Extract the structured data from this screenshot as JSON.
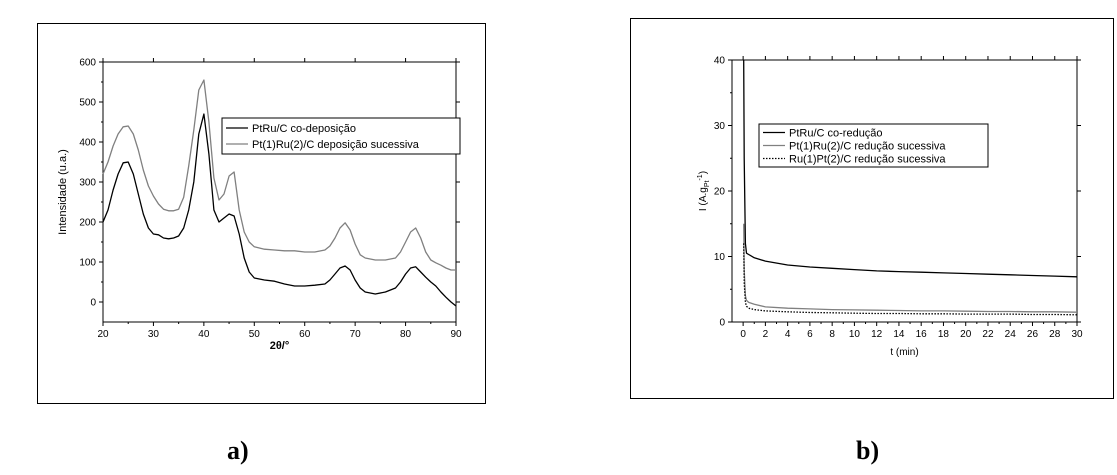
{
  "panels": [
    {
      "label": "a)"
    },
    {
      "label": "b)"
    }
  ],
  "chart_data": [
    {
      "type": "line",
      "xlabel": "2θ/°",
      "ylabel": "Intensidade (u.a.)",
      "xlim": [
        20,
        90
      ],
      "ylim": [
        -50,
        600
      ],
      "xticks": [
        20,
        30,
        40,
        50,
        60,
        70,
        80,
        90
      ],
      "yticks": [
        0,
        100,
        200,
        300,
        400,
        500,
        600
      ],
      "grid": false,
      "legend_position": "top-right",
      "series": [
        {
          "name": "PtRu/C co-deposição",
          "color": "#000000",
          "dash": "solid",
          "x": [
            20,
            21,
            22,
            23,
            24,
            25,
            26,
            27,
            28,
            29,
            30,
            31,
            32,
            33,
            34,
            35,
            36,
            37,
            38,
            39,
            40,
            41,
            42,
            43,
            44,
            45,
            46,
            47,
            48,
            49,
            50,
            52,
            54,
            56,
            58,
            60,
            62,
            64,
            65,
            66,
            67,
            68,
            69,
            70,
            71,
            72,
            74,
            76,
            78,
            79,
            80,
            81,
            82,
            83,
            84,
            85,
            86,
            87,
            88,
            89,
            90
          ],
          "values": [
            200,
            230,
            280,
            320,
            348,
            350,
            320,
            270,
            220,
            185,
            170,
            168,
            160,
            158,
            160,
            165,
            185,
            230,
            300,
            420,
            470,
            370,
            230,
            200,
            210,
            220,
            215,
            170,
            110,
            75,
            60,
            55,
            52,
            45,
            40,
            40,
            42,
            45,
            55,
            70,
            85,
            90,
            80,
            55,
            35,
            25,
            20,
            25,
            35,
            50,
            70,
            85,
            88,
            75,
            62,
            50,
            40,
            25,
            12,
            0,
            -10
          ]
        },
        {
          "name": "Pt(1)Ru(2)/C deposição sucessiva",
          "color": "#808080",
          "dash": "solid",
          "x": [
            20,
            21,
            22,
            23,
            24,
            25,
            26,
            27,
            28,
            29,
            30,
            31,
            32,
            33,
            34,
            35,
            36,
            37,
            38,
            39,
            40,
            41,
            42,
            43,
            44,
            45,
            46,
            47,
            48,
            49,
            50,
            52,
            54,
            56,
            58,
            60,
            62,
            64,
            65,
            66,
            67,
            68,
            69,
            70,
            71,
            72,
            74,
            76,
            78,
            79,
            80,
            81,
            82,
            83,
            84,
            85,
            86,
            87,
            88,
            89,
            90
          ],
          "values": [
            320,
            350,
            390,
            420,
            438,
            440,
            420,
            380,
            330,
            290,
            265,
            245,
            232,
            228,
            228,
            232,
            262,
            340,
            430,
            530,
            555,
            450,
            310,
            255,
            270,
            315,
            325,
            230,
            175,
            150,
            138,
            132,
            130,
            128,
            128,
            125,
            125,
            130,
            140,
            160,
            185,
            198,
            180,
            145,
            118,
            110,
            105,
            105,
            110,
            125,
            150,
            175,
            185,
            160,
            125,
            105,
            98,
            92,
            85,
            80,
            80
          ]
        }
      ]
    },
    {
      "type": "line",
      "xlabel": "t (min)",
      "ylabel": "I (A.g",
      "ylabel_sub": "Pt",
      "ylabel_sup": "-1",
      "ylabel_close": ")",
      "xlim": [
        -1,
        30
      ],
      "ylim": [
        0,
        40
      ],
      "xticks": [
        0,
        2,
        4,
        6,
        8,
        10,
        12,
        14,
        16,
        18,
        20,
        22,
        24,
        26,
        28,
        30
      ],
      "yticks": [
        0,
        10,
        20,
        30,
        40
      ],
      "grid": false,
      "legend_position": "top-right",
      "series": [
        {
          "name": "PtRu/C  co-redução",
          "color": "#000000",
          "dash": "solid",
          "x": [
            0.05,
            0.1,
            0.2,
            0.3,
            0.5,
            1,
            2,
            4,
            6,
            8,
            10,
            12,
            14,
            16,
            18,
            20,
            22,
            24,
            26,
            28,
            30
          ],
          "values": [
            40,
            25,
            12,
            10.5,
            10.3,
            9.8,
            9.3,
            8.7,
            8.4,
            8.2,
            8.0,
            7.8,
            7.7,
            7.6,
            7.5,
            7.4,
            7.3,
            7.2,
            7.1,
            7.0,
            6.9
          ]
        },
        {
          "name": "Pt(1)Ru(2)/C redução sucessiva",
          "color": "#808080",
          "dash": "solid",
          "x": [
            0.05,
            0.1,
            0.2,
            0.3,
            0.5,
            1,
            2,
            4,
            6,
            8,
            10,
            12,
            14,
            16,
            18,
            20,
            22,
            24,
            26,
            28,
            30
          ],
          "values": [
            15,
            8,
            4,
            3.3,
            3.0,
            2.7,
            2.3,
            2.1,
            2.0,
            1.9,
            1.85,
            1.8,
            1.75,
            1.7,
            1.7,
            1.65,
            1.6,
            1.6,
            1.55,
            1.55,
            1.5
          ]
        },
        {
          "name": "Ru(1)Pt(2)/C redução sucessiva",
          "color": "#000000",
          "dash": "dotted",
          "x": [
            0.05,
            0.1,
            0.2,
            0.3,
            0.5,
            1,
            2,
            4,
            6,
            8,
            10,
            12,
            14,
            16,
            18,
            20,
            22,
            24,
            26,
            28,
            30
          ],
          "values": [
            12,
            6,
            3,
            2.4,
            2.1,
            1.9,
            1.7,
            1.55,
            1.45,
            1.4,
            1.35,
            1.3,
            1.3,
            1.25,
            1.25,
            1.2,
            1.2,
            1.2,
            1.15,
            1.15,
            1.1
          ]
        }
      ]
    }
  ]
}
